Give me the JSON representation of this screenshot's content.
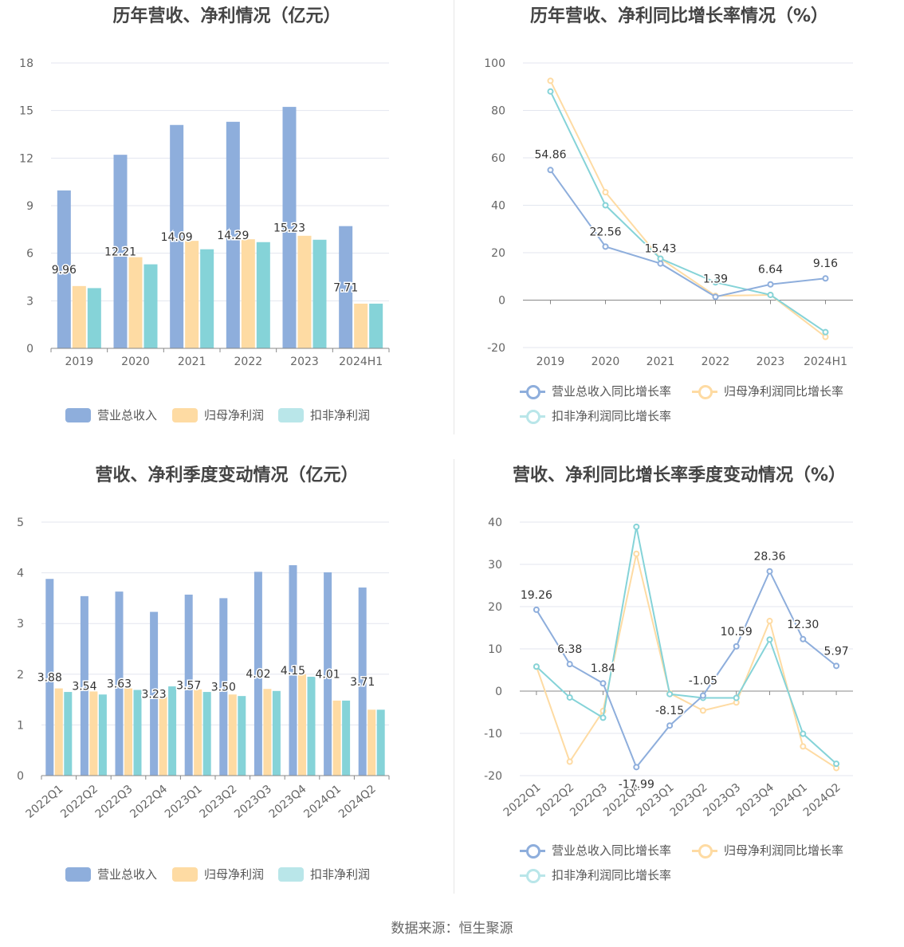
{
  "footer": "数据来源：恒生聚源",
  "legend_bar": [
    "营业总收入",
    "归母净利润",
    "扣非净利润"
  ],
  "legend_line": [
    "营业总收入同比增长率",
    "归母净利润同比增长率",
    "扣非净利润同比增长率"
  ],
  "colors": {
    "revenue": "#8eaedc",
    "net": "#fedba3",
    "deducted": "#85d3d8",
    "grid": "#e3e6ef",
    "axis": "#666666",
    "label": "#333333"
  },
  "chart_data": [
    {
      "type": "bar",
      "title": "历年营收、净利情况（亿元）",
      "categories": [
        "2019",
        "2020",
        "2021",
        "2022",
        "2023",
        "2024H1"
      ],
      "ylim": [
        0,
        18
      ],
      "yticks": [
        0,
        3,
        6,
        9,
        12,
        15,
        18
      ],
      "series": [
        {
          "name": "营业总收入",
          "values": [
            9.96,
            12.21,
            14.09,
            14.29,
            15.23,
            7.71
          ]
        },
        {
          "name": "归母净利润",
          "values": [
            3.93,
            5.75,
            6.78,
            6.88,
            7.1,
            2.82
          ]
        },
        {
          "name": "扣非净利润",
          "values": [
            3.8,
            5.3,
            6.25,
            6.7,
            6.85,
            2.82
          ]
        }
      ],
      "data_labels": [
        "9.96",
        "12.21",
        "14.09",
        "14.29",
        "15.23",
        "7.71"
      ]
    },
    {
      "type": "line",
      "title": "历年营收、净利同比增长率情况（%）",
      "categories": [
        "2019",
        "2020",
        "2021",
        "2022",
        "2023",
        "2024H1"
      ],
      "ylim": [
        -20,
        100
      ],
      "yticks": [
        -20,
        0,
        20,
        40,
        60,
        80,
        100
      ],
      "series": [
        {
          "name": "营业总收入同比增长率",
          "values": [
            54.86,
            22.56,
            15.43,
            1.39,
            6.64,
            9.16
          ]
        },
        {
          "name": "归母净利润同比增长率",
          "values": [
            92.5,
            45.5,
            17.5,
            1.8,
            2.2,
            -15.5
          ]
        },
        {
          "name": "扣非净利润同比增长率",
          "values": [
            88,
            40,
            17.5,
            7.5,
            2.2,
            -13.5
          ]
        }
      ],
      "data_labels": [
        "54.86",
        "22.56",
        "15.43",
        "1.39",
        "6.64",
        "9.16"
      ]
    },
    {
      "type": "bar",
      "title": "营收、净利季度变动情况（亿元）",
      "categories": [
        "2022Q1",
        "2022Q2",
        "2022Q3",
        "2022Q4",
        "2023Q1",
        "2023Q2",
        "2023Q3",
        "2023Q4",
        "2024Q1",
        "2024Q2"
      ],
      "ylim": [
        0,
        5
      ],
      "yticks": [
        0,
        1,
        2,
        3,
        4,
        5
      ],
      "series": [
        {
          "name": "营业总收入",
          "values": [
            3.88,
            3.54,
            3.63,
            3.23,
            3.57,
            3.5,
            4.02,
            4.15,
            4.01,
            3.71
          ]
        },
        {
          "name": "归母净利润",
          "values": [
            1.72,
            1.66,
            1.72,
            1.55,
            1.7,
            1.6,
            1.71,
            2.0,
            1.48,
            1.3
          ]
        },
        {
          "name": "扣非净利润",
          "values": [
            1.65,
            1.6,
            1.69,
            1.76,
            1.65,
            1.57,
            1.67,
            1.95,
            1.48,
            1.3
          ]
        }
      ],
      "data_labels": [
        "3.88",
        "3.54",
        "3.63",
        "3.23",
        "3.57",
        "3.50",
        "4.02",
        "4.15",
        "4.01",
        "3.71"
      ]
    },
    {
      "type": "line",
      "title": "营收、净利同比增长率季度变动情况（%）",
      "categories": [
        "2022Q1",
        "2022Q2",
        "2022Q3",
        "2022Q4",
        "2023Q1",
        "2023Q2",
        "2023Q3",
        "2023Q4",
        "2024Q1",
        "2024Q2"
      ],
      "ylim": [
        -20,
        40
      ],
      "yticks": [
        -20,
        -10,
        0,
        10,
        20,
        30,
        40
      ],
      "series": [
        {
          "name": "营业总收入同比增长率",
          "values": [
            19.26,
            6.38,
            1.84,
            -17.99,
            -8.15,
            -1.05,
            10.59,
            28.36,
            12.3,
            5.97
          ]
        },
        {
          "name": "归母净利润同比增长率",
          "values": [
            5.8,
            -16.7,
            -4.7,
            32.5,
            -0.5,
            -4.6,
            -2.7,
            16.6,
            -13.1,
            -18.2
          ]
        },
        {
          "name": "扣非净利润同比增长率",
          "values": [
            5.8,
            -1.5,
            -6.3,
            38.9,
            -0.7,
            -1.6,
            -1.6,
            12.2,
            -10.1,
            -17.2
          ]
        }
      ],
      "data_labels": [
        "19.26",
        "6.38",
        "1.84",
        "-17.99",
        "-8.15",
        "-1.05",
        "10.59",
        "28.36",
        "12.30",
        "5.97"
      ]
    }
  ]
}
